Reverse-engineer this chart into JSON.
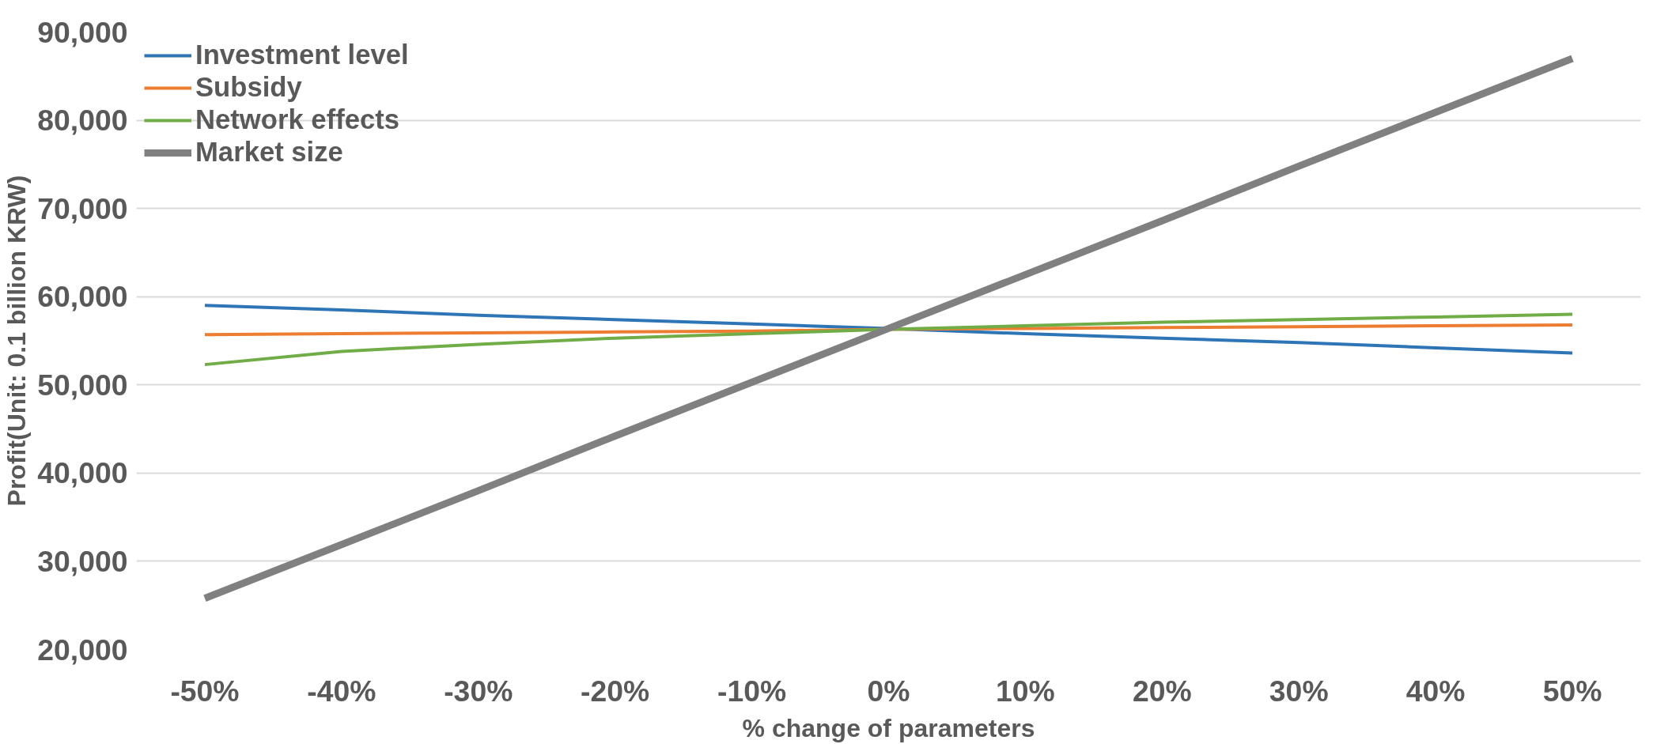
{
  "chart_data": {
    "type": "line",
    "xlabel": "% change of parameters",
    "ylabel": "Profit(Unit: 0.1 billion KRW)",
    "categories": [
      "-50%",
      "-40%",
      "-30%",
      "-20%",
      "-10%",
      "0%",
      "10%",
      "20%",
      "30%",
      "40%",
      "50%"
    ],
    "series": [
      {
        "name": "Investment level",
        "color": "#2e75b6",
        "values": [
          59000,
          58500,
          57900,
          57400,
          56900,
          56400,
          55800,
          55300,
          54800,
          54200,
          53600
        ]
      },
      {
        "name": "Subsidy",
        "color": "#ed7d31",
        "values": [
          55700,
          55800,
          55900,
          56000,
          56100,
          56300,
          56400,
          56500,
          56600,
          56700,
          56800
        ]
      },
      {
        "name": "Network effects",
        "color": "#70ad47",
        "values": [
          52300,
          53800,
          54600,
          55300,
          55800,
          56300,
          56700,
          57100,
          57400,
          57700,
          58000
        ]
      },
      {
        "name": "Market size",
        "color": "#808080",
        "values": [
          25800,
          31900,
          38000,
          44200,
          50300,
          56400,
          62500,
          68600,
          74800,
          80900,
          87000
        ]
      }
    ],
    "ylim": [
      20000,
      90000
    ],
    "yticks": [
      {
        "value": 20000,
        "label": "20,000"
      },
      {
        "value": 30000,
        "label": "30,000"
      },
      {
        "value": 40000,
        "label": "40,000"
      },
      {
        "value": 50000,
        "label": "50,000"
      },
      {
        "value": 60000,
        "label": "60,000"
      },
      {
        "value": 70000,
        "label": "70,000"
      },
      {
        "value": 80000,
        "label": "80,000"
      },
      {
        "value": 90000,
        "label": "90,000"
      }
    ],
    "grid": "y",
    "legend": "top left",
    "marker": "none",
    "line_style": "solid"
  }
}
